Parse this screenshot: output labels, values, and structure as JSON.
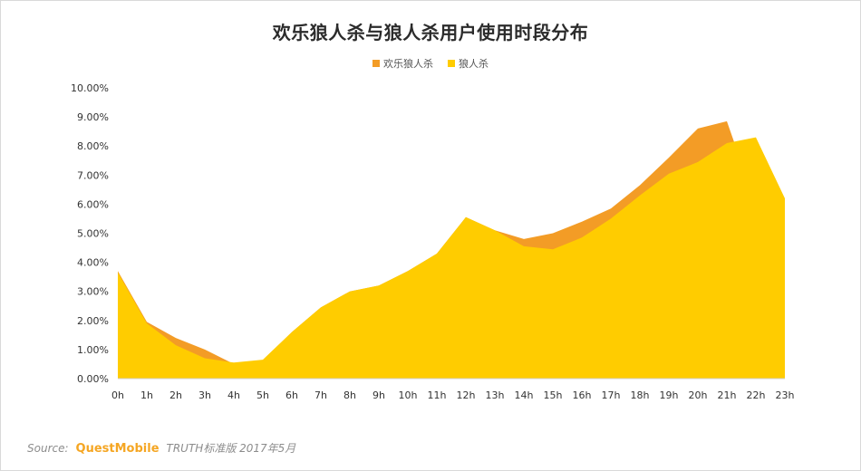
{
  "chart_data": {
    "type": "area",
    "title": "欢乐狼人杀与狼人杀用户使用时段分布",
    "categories": [
      "0h",
      "1h",
      "2h",
      "3h",
      "4h",
      "5h",
      "6h",
      "7h",
      "8h",
      "9h",
      "10h",
      "11h",
      "12h",
      "13h",
      "14h",
      "15h",
      "16h",
      "17h",
      "18h",
      "19h",
      "20h",
      "21h",
      "22h",
      "23h"
    ],
    "series": [
      {
        "name": "欢乐狼人杀",
        "color": "#f39c26",
        "values": [
          3.7,
          1.95,
          1.4,
          1.0,
          0.5,
          0.6,
          1.6,
          2.45,
          3.0,
          3.2,
          3.7,
          4.3,
          5.55,
          5.1,
          4.8,
          5.0,
          5.4,
          5.85,
          6.65,
          7.6,
          8.6,
          8.85,
          6.0,
          5.3
        ]
      },
      {
        "name": "狼人杀",
        "color": "#ffcc00",
        "values": [
          3.65,
          1.9,
          1.15,
          0.7,
          0.55,
          0.65,
          1.6,
          2.45,
          3.0,
          3.2,
          3.7,
          4.3,
          5.55,
          5.1,
          4.55,
          4.45,
          4.85,
          5.5,
          6.3,
          7.05,
          7.45,
          8.1,
          8.3,
          6.2
        ]
      }
    ],
    "ylim": [
      0,
      10
    ],
    "yticks": [
      "0.00%",
      "1.00%",
      "2.00%",
      "3.00%",
      "4.00%",
      "5.00%",
      "6.00%",
      "7.00%",
      "8.00%",
      "9.00%",
      "10.00%"
    ],
    "grid": false,
    "legend_position": "top-center",
    "xlabel": "",
    "ylabel": ""
  },
  "footer": {
    "source_label": "Source:",
    "brand": "QuestMobile",
    "edition": "TRUTH标准版 2017年5月"
  }
}
